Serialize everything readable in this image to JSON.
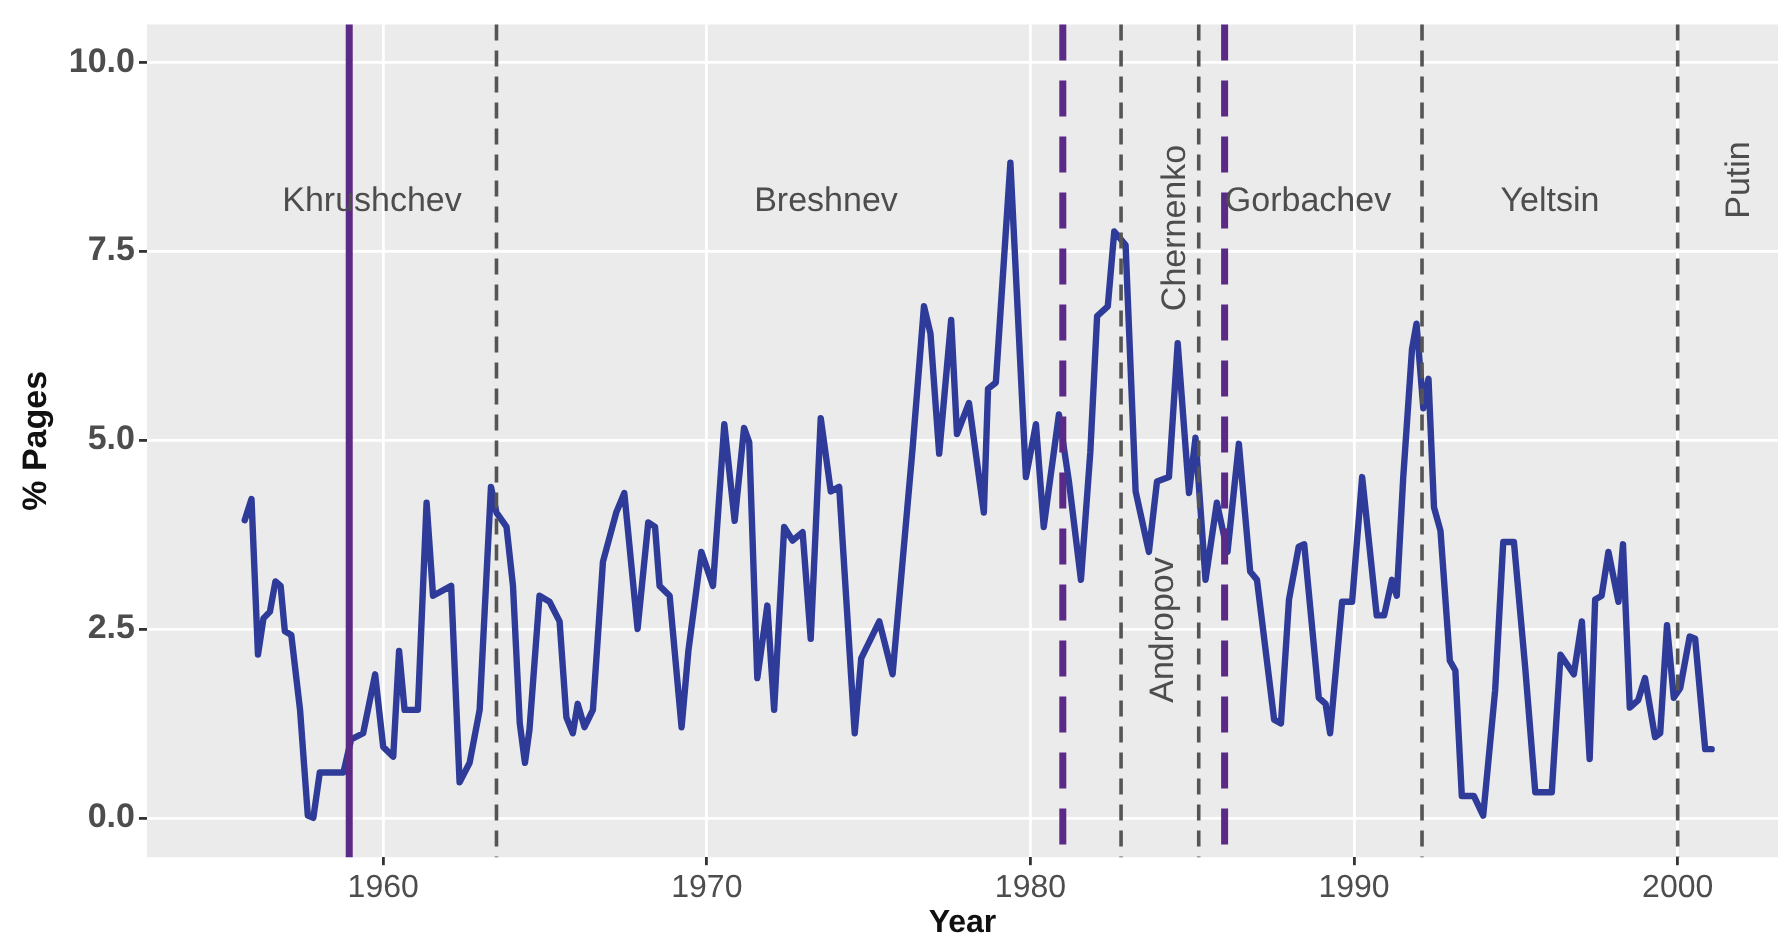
{
  "chart_data": {
    "type": "line",
    "xlabel": "Year",
    "ylabel": "% Pages",
    "xlim": [
      1952.7,
      2003.1
    ],
    "xticks": [
      1960,
      1970,
      1980,
      1990,
      2000
    ],
    "ylim": [
      -0.52,
      10.5
    ],
    "yticks": [
      {
        "value": 0,
        "label": "0.0"
      },
      {
        "value": 2.5,
        "label": "2.5"
      },
      {
        "value": 5,
        "label": "5.0"
      },
      {
        "value": 7.5,
        "label": "7.5"
      },
      {
        "value": 10,
        "label": "10.0"
      }
    ],
    "grid": true,
    "legend": false,
    "marker": "none",
    "line_style": "solid",
    "series": [
      {
        "color": "#2e3b98",
        "x": [
          1955.72,
          1955.93,
          1956.13,
          1956.3,
          1956.5,
          1956.67,
          1956.83,
          1956.96,
          1957.16,
          1957.43,
          1957.67,
          1957.84,
          1958.04,
          1958.77,
          1959.01,
          1959.38,
          1959.75,
          1960.0,
          1960.31,
          1960.49,
          1960.66,
          1961.07,
          1961.34,
          1961.54,
          1962.1,
          1962.36,
          1962.67,
          1962.98,
          1963.33,
          1963.5,
          1963.81,
          1964.01,
          1964.22,
          1964.38,
          1964.52,
          1964.83,
          1965.14,
          1965.45,
          1965.66,
          1965.86,
          1966.01,
          1966.22,
          1966.48,
          1966.79,
          1967.2,
          1967.45,
          1967.86,
          1968.19,
          1968.4,
          1968.54,
          1968.85,
          1969.22,
          1969.43,
          1969.83,
          1970.19,
          1970.54,
          1970.86,
          1971.15,
          1971.31,
          1971.56,
          1971.87,
          1972.08,
          1972.39,
          1972.65,
          1972.96,
          1973.21,
          1973.52,
          1973.83,
          1974.09,
          1974.57,
          1974.77,
          1975.33,
          1975.74,
          1976.36,
          1976.71,
          1976.91,
          1977.18,
          1977.55,
          1977.73,
          1978.1,
          1978.56,
          1978.69,
          1978.93,
          1979.38,
          1979.86,
          1980.17,
          1980.41,
          1980.88,
          1981.19,
          1981.56,
          1981.85,
          1982.06,
          1982.39,
          1982.59,
          1982.94,
          1983.25,
          1983.66,
          1983.91,
          1984.28,
          1984.55,
          1984.9,
          1985.1,
          1985.41,
          1985.76,
          1986.09,
          1986.44,
          1986.79,
          1987.0,
          1987.53,
          1987.74,
          1987.99,
          1988.29,
          1988.46,
          1988.91,
          1989.12,
          1989.26,
          1989.63,
          1989.94,
          1990.25,
          1990.7,
          1990.93,
          1991.17,
          1991.32,
          1991.52,
          1991.79,
          1991.93,
          1992.14,
          1992.3,
          1992.47,
          1992.67,
          1992.96,
          1993.13,
          1993.33,
          1993.7,
          1993.99,
          1994.36,
          1994.61,
          1994.94,
          1995.29,
          1995.6,
          1996.11,
          1996.38,
          1996.79,
          1997.04,
          1997.28,
          1997.45,
          1997.65,
          1997.86,
          1998.17,
          1998.31,
          1998.52,
          1998.78,
          1998.99,
          1999.3,
          1999.46,
          1999.67,
          1999.88,
          2000.08,
          2000.37,
          2000.54,
          2000.85,
          2001.05
        ],
        "values": [
          3.94,
          4.22,
          2.16,
          2.64,
          2.73,
          3.13,
          3.07,
          2.47,
          2.42,
          1.43,
          0.03,
          0.0,
          0.6,
          0.6,
          1.04,
          1.12,
          1.9,
          0.94,
          0.81,
          2.21,
          1.43,
          1.43,
          4.17,
          2.94,
          3.07,
          0.47,
          0.73,
          1.43,
          4.38,
          4.04,
          3.85,
          3.07,
          1.25,
          0.73,
          1.17,
          2.94,
          2.86,
          2.6,
          1.33,
          1.12,
          1.51,
          1.2,
          1.43,
          3.39,
          4.04,
          4.3,
          2.5,
          3.91,
          3.85,
          3.07,
          2.94,
          1.2,
          2.21,
          3.52,
          3.07,
          5.21,
          3.93,
          5.16,
          4.97,
          1.85,
          2.81,
          1.43,
          3.85,
          3.67,
          3.78,
          2.37,
          5.29,
          4.32,
          4.38,
          1.12,
          2.11,
          2.6,
          1.9,
          4.9,
          6.77,
          6.41,
          4.82,
          6.59,
          5.08,
          5.49,
          4.04,
          5.68,
          5.76,
          8.67,
          4.51,
          5.21,
          3.85,
          5.34,
          4.45,
          3.15,
          4.84,
          6.64,
          6.77,
          7.76,
          7.58,
          4.32,
          3.52,
          4.45,
          4.51,
          6.28,
          4.3,
          5.03,
          3.15,
          4.17,
          3.52,
          4.95,
          3.26,
          3.15,
          1.3,
          1.25,
          2.89,
          3.59,
          3.62,
          1.59,
          1.51,
          1.12,
          2.86,
          2.86,
          4.51,
          2.68,
          2.68,
          3.15,
          2.94,
          4.51,
          6.2,
          6.54,
          5.42,
          5.81,
          4.11,
          3.8,
          2.08,
          1.95,
          0.29,
          0.29,
          0.03,
          1.69,
          3.65,
          3.65,
          1.98,
          0.34,
          0.34,
          2.16,
          1.9,
          2.6,
          0.78,
          2.89,
          2.94,
          3.52,
          2.86,
          3.62,
          1.46,
          1.56,
          1.85,
          1.07,
          1.12,
          2.55,
          1.59,
          1.72,
          2.4,
          2.37,
          0.91,
          0.91
        ]
      }
    ],
    "ref_lines": [
      {
        "axis": "x",
        "value": 1958.95,
        "color": "#5b2a86",
        "line_style": "solid"
      },
      {
        "axis": "x",
        "value": 1963.5,
        "color": "#555555",
        "line_style": "dashed"
      },
      {
        "axis": "x",
        "value": 1981.0,
        "color": "#5b2a86",
        "line_style": "dashed"
      },
      {
        "axis": "x",
        "value": 1982.8,
        "color": "#555555",
        "line_style": "dashed"
      },
      {
        "axis": "x",
        "value": 1985.2,
        "color": "#555555",
        "line_style": "dashed"
      },
      {
        "axis": "x",
        "value": 1986.0,
        "color": "#5b2a86",
        "line_style": "dashed"
      },
      {
        "axis": "x",
        "value": 1992.1,
        "color": "#555555",
        "line_style": "dashed"
      },
      {
        "axis": "x",
        "value": 2000.0,
        "color": "#555555",
        "line_style": "dashed"
      }
    ],
    "annotations": [
      "Khrushchev",
      "Breshnev",
      "Chernenko",
      "Andropov",
      "Gorbachev",
      "Yeltsin",
      "Putin"
    ]
  }
}
